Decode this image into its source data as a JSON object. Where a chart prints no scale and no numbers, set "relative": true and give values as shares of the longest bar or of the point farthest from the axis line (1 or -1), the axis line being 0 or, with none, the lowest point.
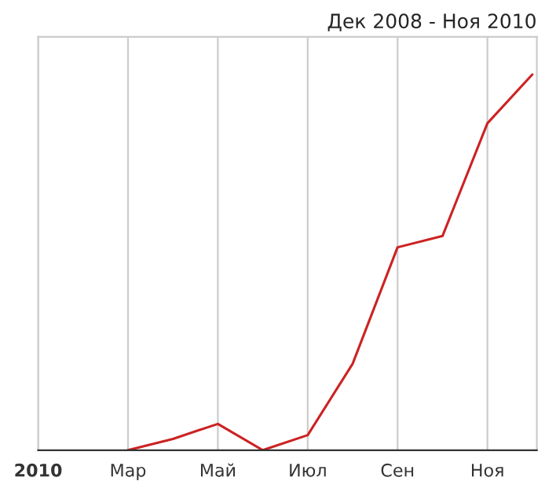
{
  "chart_data": {
    "type": "line",
    "title": "Дек 2008 - Ноя 2010",
    "relative": true,
    "categories": [
      "2010",
      null,
      "Мар",
      null,
      "Май",
      null,
      "Июл",
      null,
      "Сен",
      null,
      "Ноя",
      null
    ],
    "series": [
      {
        "color": "#cc2222",
        "values": [
          null,
          null,
          0,
          0.03,
          0.07,
          0,
          0.04,
          0.23,
          0.54,
          0.57,
          0.87,
          1
        ]
      }
    ],
    "grid": "x",
    "line_style": "solid",
    "marker": "none",
    "legend": false
  }
}
